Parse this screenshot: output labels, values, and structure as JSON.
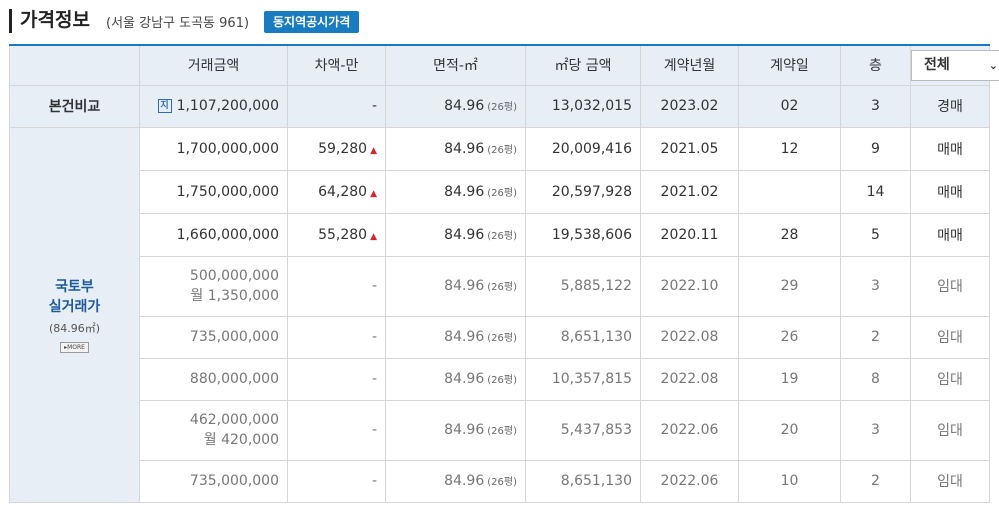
{
  "header": {
    "title": "가격정보",
    "address": "(서울 강남구 도곡동 961)",
    "button_label": "동지역공시가격"
  },
  "columns": [
    "거래금액",
    "차액-만",
    "면적-㎡",
    "㎡당 금액",
    "계약년월",
    "계약일",
    "층"
  ],
  "filter": {
    "selected": "전체"
  },
  "self_row": {
    "label": "본건비교",
    "amount": "1,107,200,000",
    "diff": "-",
    "area": "84.96",
    "pyeong": "(26평)",
    "per_m2": "13,032,015",
    "ym": "2023.02",
    "day": "02",
    "floor": "3",
    "type": "경매"
  },
  "group": {
    "title": "국토부\n실거래가",
    "sub": "(84.96㎡)",
    "more_label": "MORE"
  },
  "rows": [
    {
      "amount": "1,700,000,000",
      "diff": "59,280",
      "up": "▲",
      "area": "84.96",
      "pyeong": "(26평)",
      "per_m2": "20,009,416",
      "ym": "2021.05",
      "day": "12",
      "floor": "9",
      "type": "매매"
    },
    {
      "amount": "1,750,000,000",
      "diff": "64,280",
      "up": "▲",
      "area": "84.96",
      "pyeong": "(26평)",
      "per_m2": "20,597,928",
      "ym": "2021.02",
      "day": "",
      "floor": "14",
      "type": "매매"
    },
    {
      "amount": "1,660,000,000",
      "diff": "55,280",
      "up": "▲",
      "area": "84.96",
      "pyeong": "(26평)",
      "per_m2": "19,538,606",
      "ym": "2020.11",
      "day": "28",
      "floor": "5",
      "type": "매매"
    },
    {
      "amount": "500,000,000",
      "amount2": "월 1,350,000",
      "diff": "-",
      "area": "84.96",
      "pyeong": "(26평)",
      "per_m2": "5,885,122",
      "ym": "2022.10",
      "day": "29",
      "floor": "3",
      "type": "임대"
    },
    {
      "amount": "735,000,000",
      "diff": "-",
      "area": "84.96",
      "pyeong": "(26평)",
      "per_m2": "8,651,130",
      "ym": "2022.08",
      "day": "26",
      "floor": "2",
      "type": "임대"
    },
    {
      "amount": "880,000,000",
      "diff": "-",
      "area": "84.96",
      "pyeong": "(26평)",
      "per_m2": "10,357,815",
      "ym": "2022.08",
      "day": "19",
      "floor": "8",
      "type": "임대"
    },
    {
      "amount": "462,000,000",
      "amount2": "월 420,000",
      "diff": "-",
      "area": "84.96",
      "pyeong": "(26평)",
      "per_m2": "5,437,853",
      "ym": "2022.06",
      "day": "20",
      "floor": "3",
      "type": "임대"
    },
    {
      "amount": "735,000,000",
      "diff": "-",
      "area": "84.96",
      "pyeong": "(26평)",
      "per_m2": "8,651,130",
      "ym": "2022.06",
      "day": "10",
      "floor": "2",
      "type": "임대"
    }
  ]
}
